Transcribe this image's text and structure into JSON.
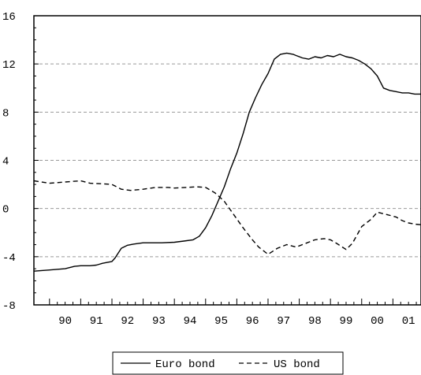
{
  "chart_data": {
    "type": "line",
    "title": "",
    "xlabel": "",
    "ylabel": "",
    "x_ticks": [
      "90",
      "91",
      "92",
      "93",
      "94",
      "95",
      "96",
      "97",
      "98",
      "99",
      "00",
      "01"
    ],
    "y_ticks": [
      -8,
      -4,
      0,
      4,
      8,
      12,
      16
    ],
    "y_tick_labels": [
      "-8",
      "-4",
      "0",
      "4",
      "8",
      "12",
      "16"
    ],
    "xlim": [
      1989.5,
      2001.9
    ],
    "ylim": [
      -8,
      16
    ],
    "grid": "horizontal dashed",
    "legend": "bottom-center",
    "series": [
      {
        "name": "Euro bond",
        "style": "solid",
        "color": "#000000",
        "x": [
          1989.5,
          1990.0,
          1990.5,
          1990.8,
          1991.0,
          1991.3,
          1991.5,
          1991.7,
          1992.0,
          1992.1,
          1992.3,
          1992.5,
          1992.7,
          1993.0,
          1993.3,
          1993.6,
          1994.0,
          1994.3,
          1994.6,
          1994.8,
          1995.0,
          1995.2,
          1995.4,
          1995.6,
          1995.8,
          1996.0,
          1996.2,
          1996.4,
          1996.6,
          1996.8,
          1997.0,
          1997.2,
          1997.4,
          1997.6,
          1997.8,
          1997.9,
          1998.1,
          1998.3,
          1998.5,
          1998.7,
          1998.9,
          1999.1,
          1999.3,
          1999.5,
          1999.7,
          1999.9,
          2000.1,
          2000.3,
          2000.5,
          2000.7,
          2000.9,
          2001.1,
          2001.3,
          2001.5,
          2001.7,
          2001.9
        ],
        "values": [
          -5.2,
          -5.1,
          -5.0,
          -4.8,
          -4.75,
          -4.75,
          -4.7,
          -4.55,
          -4.4,
          -4.1,
          -3.3,
          -3.05,
          -2.95,
          -2.85,
          -2.85,
          -2.85,
          -2.8,
          -2.7,
          -2.6,
          -2.3,
          -1.6,
          -0.6,
          0.6,
          1.8,
          3.3,
          4.6,
          6.2,
          8.0,
          9.2,
          10.3,
          11.2,
          12.4,
          12.8,
          12.9,
          12.8,
          12.7,
          12.5,
          12.4,
          12.6,
          12.5,
          12.7,
          12.6,
          12.8,
          12.6,
          12.5,
          12.3,
          12.0,
          11.6,
          11.0,
          10.0,
          9.8,
          9.7,
          9.6,
          9.6,
          9.5,
          9.5
        ]
      },
      {
        "name": "US bond",
        "style": "dashed",
        "color": "#000000",
        "x": [
          1989.5,
          1990.0,
          1990.5,
          1991.0,
          1991.3,
          1991.7,
          1992.0,
          1992.3,
          1992.6,
          1993.0,
          1993.4,
          1993.8,
          1994.0,
          1994.4,
          1994.7,
          1995.0,
          1995.3,
          1995.6,
          1995.9,
          1996.2,
          1996.5,
          1996.7,
          1997.0,
          1997.3,
          1997.6,
          1997.9,
          1998.2,
          1998.5,
          1998.8,
          1999.0,
          1999.2,
          1999.5,
          1999.7,
          2000.0,
          2000.3,
          2000.5,
          2000.8,
          2001.1,
          2001.3,
          2001.5,
          2001.7,
          2001.9
        ],
        "values": [
          2.3,
          2.1,
          2.2,
          2.3,
          2.1,
          2.05,
          2.0,
          1.6,
          1.5,
          1.6,
          1.75,
          1.75,
          1.7,
          1.75,
          1.8,
          1.75,
          1.3,
          0.6,
          -0.5,
          -1.6,
          -2.6,
          -3.2,
          -3.8,
          -3.3,
          -3.0,
          -3.2,
          -2.9,
          -2.6,
          -2.5,
          -2.6,
          -2.9,
          -3.4,
          -2.9,
          -1.5,
          -0.9,
          -0.3,
          -0.5,
          -0.7,
          -1.0,
          -1.2,
          -1.3,
          -1.35
        ]
      }
    ]
  }
}
